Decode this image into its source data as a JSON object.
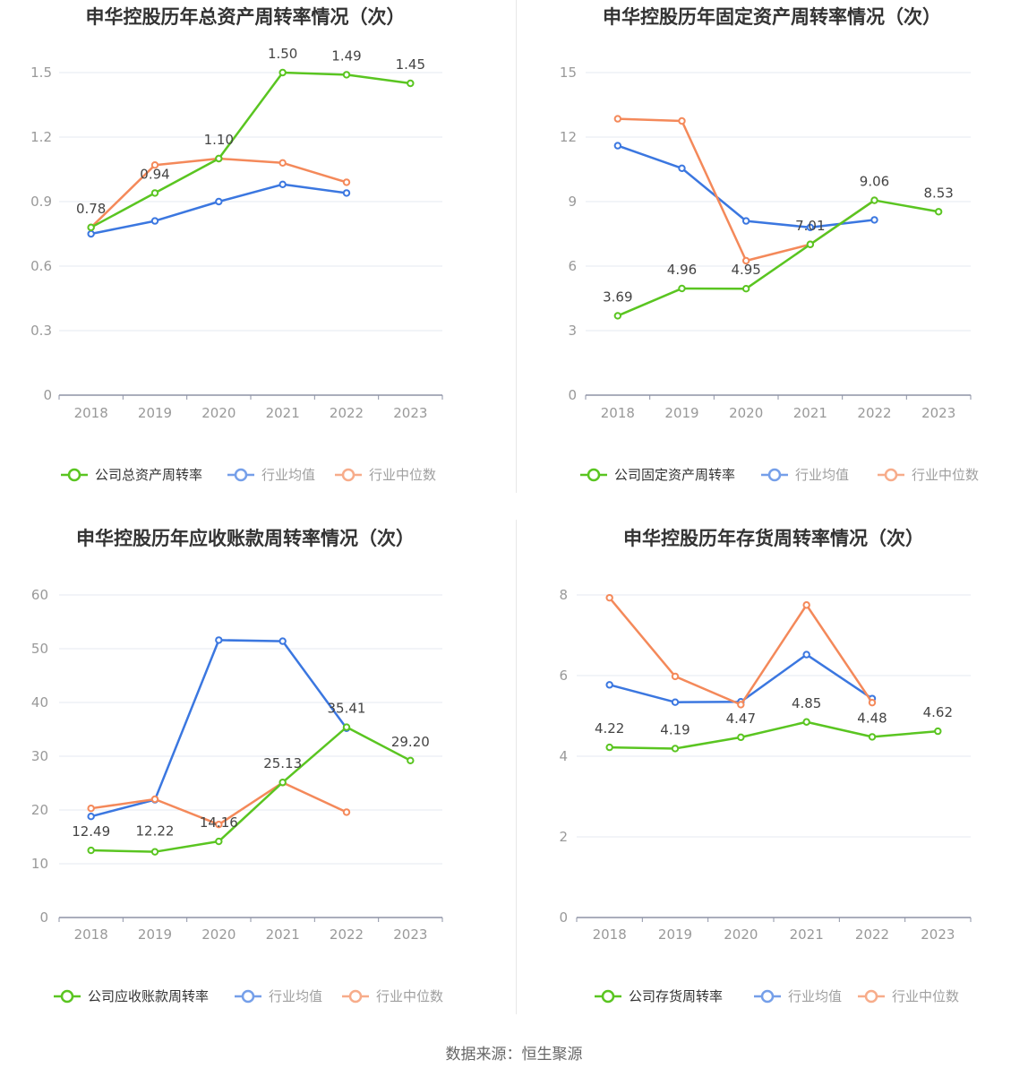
{
  "source": "数据来源：恒生聚源",
  "colors": {
    "company": "#5ac521",
    "avg": "#3b77e0",
    "median": "#f4895a"
  },
  "chart_data": [
    {
      "type": "line",
      "title": "申华控股历年总资产周转率情况（次）",
      "x": [
        "2018",
        "2019",
        "2020",
        "2021",
        "2022",
        "2023"
      ],
      "yticks": [
        "0",
        "0.3",
        "0.6",
        "0.9",
        "1.2",
        "1.5"
      ],
      "ylim": [
        0,
        1.5
      ],
      "series": [
        {
          "name": "公司总资产周转率",
          "values": [
            0.78,
            0.94,
            1.1,
            1.5,
            1.49,
            1.45
          ],
          "labels": [
            "0.78",
            "0.94",
            "1.10",
            "1.50",
            "1.49",
            "1.45"
          ]
        },
        {
          "name": "行业均值",
          "values": [
            0.75,
            0.81,
            0.9,
            0.98,
            0.94,
            null
          ]
        },
        {
          "name": "行业中位数",
          "values": [
            0.78,
            1.07,
            1.1,
            1.08,
            0.99,
            null
          ]
        }
      ]
    },
    {
      "type": "line",
      "title": "申华控股历年固定资产周转率情况（次）",
      "x": [
        "2018",
        "2019",
        "2020",
        "2021",
        "2022",
        "2023"
      ],
      "yticks": [
        "0",
        "3",
        "6",
        "9",
        "12",
        "15"
      ],
      "ylim": [
        0,
        15
      ],
      "series": [
        {
          "name": "公司固定资产周转率",
          "values": [
            3.69,
            4.96,
            4.95,
            7.01,
            9.06,
            8.53
          ],
          "labels": [
            "3.69",
            "4.96",
            "4.95",
            "7.01",
            "9.06",
            "8.53"
          ]
        },
        {
          "name": "行业均值",
          "values": [
            11.6,
            10.55,
            8.1,
            7.8,
            8.15,
            null
          ]
        },
        {
          "name": "行业中位数",
          "values": [
            12.85,
            12.75,
            6.25,
            7.01,
            9.06,
            null
          ]
        }
      ]
    },
    {
      "type": "line",
      "title": "申华控股历年应收账款周转率情况（次）",
      "x": [
        "2018",
        "2019",
        "2020",
        "2021",
        "2022",
        "2023"
      ],
      "yticks": [
        "0",
        "10",
        "20",
        "30",
        "40",
        "50",
        "60"
      ],
      "ylim": [
        0,
        60
      ],
      "series": [
        {
          "name": "公司应收账款周转率",
          "values": [
            12.49,
            12.22,
            14.16,
            25.13,
            35.41,
            29.2
          ],
          "labels": [
            "12.49",
            "12.22",
            "14.16",
            "25.13",
            "35.41",
            "29.20"
          ]
        },
        {
          "name": "行业均值",
          "values": [
            18.8,
            21.9,
            51.6,
            51.4,
            35.2,
            null
          ]
        },
        {
          "name": "行业中位数",
          "values": [
            20.3,
            22.0,
            17.3,
            25.1,
            19.6,
            null
          ]
        }
      ]
    },
    {
      "type": "line",
      "title": "申华控股历年存货周转率情况（次）",
      "x": [
        "2018",
        "2019",
        "2020",
        "2021",
        "2022",
        "2023"
      ],
      "yticks": [
        "0",
        "2",
        "4",
        "6",
        "8"
      ],
      "ylim": [
        0,
        8
      ],
      "series": [
        {
          "name": "公司存货周转率",
          "values": [
            4.22,
            4.19,
            4.47,
            4.85,
            4.48,
            4.62
          ],
          "labels": [
            "4.22",
            "4.19",
            "4.47",
            "4.85",
            "4.48",
            "4.62"
          ]
        },
        {
          "name": "行业均值",
          "values": [
            5.77,
            5.34,
            5.35,
            6.52,
            5.43,
            null
          ]
        },
        {
          "name": "行业中位数",
          "values": [
            7.93,
            5.98,
            5.28,
            7.75,
            5.33,
            null
          ]
        }
      ]
    }
  ]
}
